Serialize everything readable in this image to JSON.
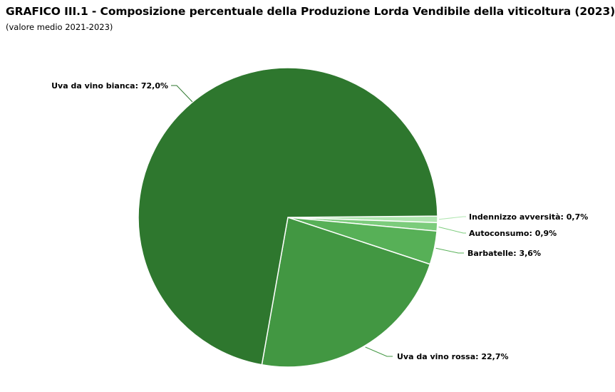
{
  "title": "GRAFICO III.1 - Composizione percentuale della Produzione Lorda Vendibile della viticoltura (2023)",
  "subtitle": "(valore medio 2021-2023)",
  "chart_data": {
    "type": "pie",
    "title": "GRAFICO III.1 - Composizione percentuale della Produzione Lorda Vendibile della viticoltura (2023)",
    "subtitle": "(valore medio 2021-2023)",
    "slices": [
      {
        "name": "Uva da vino bianca",
        "value": 72.0,
        "label": "Uva da vino bianca: 72,0%",
        "color": "#2e772e"
      },
      {
        "name": "Uva da vino rossa",
        "value": 22.7,
        "label": "Uva da vino rossa: 22,7%",
        "color": "#429742"
      },
      {
        "name": "Barbatelle",
        "value": 3.6,
        "label": "Barbatelle: 3,6%",
        "color": "#57b057"
      },
      {
        "name": "Autoconsumo",
        "value": 0.9,
        "label": "Autoconsumo: 0,9%",
        "color": "#7ccc7c"
      },
      {
        "name": "Indennizzo avversità",
        "value": 0.7,
        "label": "Indennizzo avversità: 0,7%",
        "color": "#b0e6b0"
      }
    ]
  }
}
